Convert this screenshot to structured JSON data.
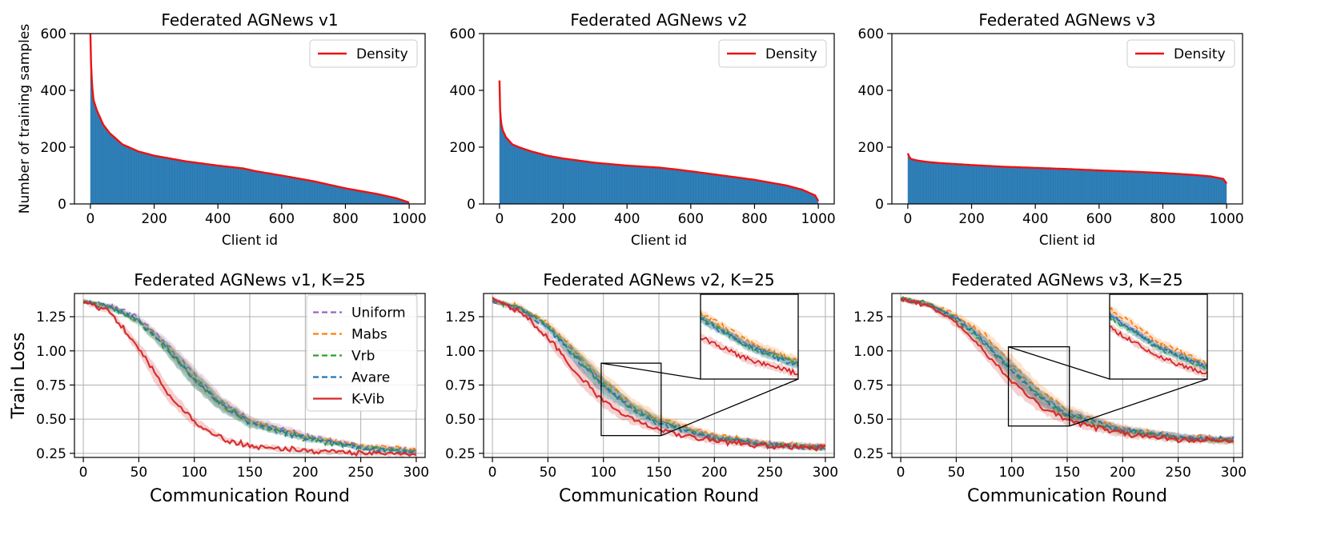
{
  "chart_data": [
    {
      "type": "bar",
      "title": "Federated AGNews v1",
      "xlabel": "Client id",
      "ylabel": "Number of training samples",
      "xlim": [
        -50,
        1050
      ],
      "ylim": [
        0,
        600
      ],
      "xticks": [
        0,
        200,
        400,
        600,
        800,
        1000
      ],
      "yticks": [
        0,
        200,
        400,
        600
      ],
      "legend": [
        "Density"
      ],
      "legend_loc": "upper right",
      "colors": {
        "bar": "#2f7fb8",
        "density": "#ee1111"
      },
      "density_x": [
        0,
        2,
        5,
        10,
        20,
        40,
        60,
        100,
        150,
        200,
        300,
        400,
        480,
        520,
        600,
        700,
        800,
        900,
        960,
        1000
      ],
      "density_y": [
        600,
        500,
        420,
        365,
        330,
        280,
        250,
        210,
        185,
        170,
        150,
        135,
        125,
        115,
        100,
        80,
        55,
        35,
        20,
        5
      ]
    },
    {
      "type": "bar",
      "title": "Federated AGNews v2",
      "xlabel": "Client id",
      "ylabel": "",
      "xlim": [
        -50,
        1050
      ],
      "ylim": [
        0,
        600
      ],
      "xticks": [
        0,
        200,
        400,
        600,
        800,
        1000
      ],
      "yticks": [
        0,
        200,
        400,
        600
      ],
      "legend": [
        "Density"
      ],
      "legend_loc": "upper right",
      "colors": {
        "bar": "#2f7fb8",
        "density": "#ee1111"
      },
      "density_x": [
        0,
        2,
        5,
        10,
        20,
        40,
        60,
        100,
        150,
        200,
        300,
        400,
        500,
        550,
        600,
        700,
        800,
        900,
        950,
        990,
        1000
      ],
      "density_y": [
        435,
        330,
        285,
        260,
        235,
        210,
        200,
        185,
        170,
        160,
        145,
        135,
        128,
        122,
        115,
        100,
        85,
        65,
        50,
        30,
        10
      ]
    },
    {
      "type": "bar",
      "title": "Federated AGNews v3",
      "xlabel": "Client id",
      "ylabel": "",
      "xlim": [
        -50,
        1050
      ],
      "ylim": [
        0,
        600
      ],
      "xticks": [
        0,
        200,
        400,
        600,
        800,
        1000
      ],
      "yticks": [
        0,
        200,
        400,
        600
      ],
      "legend": [
        "Density"
      ],
      "legend_loc": "upper right",
      "colors": {
        "bar": "#2f7fb8",
        "density": "#ee1111"
      },
      "density_x": [
        0,
        5,
        10,
        30,
        60,
        100,
        200,
        300,
        400,
        500,
        600,
        700,
        800,
        900,
        950,
        990,
        1000
      ],
      "density_y": [
        178,
        165,
        158,
        153,
        148,
        144,
        137,
        131,
        127,
        123,
        118,
        114,
        109,
        102,
        97,
        88,
        72
      ]
    },
    {
      "type": "line",
      "title": "Federated AGNews v1, K=25",
      "xlabel": "Communication Round",
      "ylabel": "Train Loss",
      "xlim": [
        -8,
        308
      ],
      "ylim": [
        0.22,
        1.42
      ],
      "xticks": [
        0,
        50,
        100,
        150,
        200,
        250,
        300
      ],
      "yticks": [
        0.25,
        0.5,
        0.75,
        1.0,
        1.25
      ],
      "ytick_labels": [
        "0.25",
        "0.50",
        "0.75",
        "1.00",
        "1.25"
      ],
      "legend_loc": "upper right",
      "x": [
        0,
        25,
        50,
        75,
        100,
        125,
        150,
        200,
        250,
        300
      ],
      "series": [
        {
          "name": "Uniform",
          "color": "#9467bd",
          "dash": "dashed",
          "values": [
            1.36,
            1.33,
            1.24,
            1.05,
            0.82,
            0.62,
            0.49,
            0.38,
            0.3,
            0.27
          ]
        },
        {
          "name": "Mabs",
          "color": "#ff7f0e",
          "dash": "dashed",
          "values": [
            1.36,
            1.32,
            1.22,
            1.03,
            0.8,
            0.61,
            0.48,
            0.37,
            0.3,
            0.28
          ]
        },
        {
          "name": "Vrb",
          "color": "#2ca02c",
          "dash": "dashed",
          "values": [
            1.36,
            1.32,
            1.21,
            1.02,
            0.79,
            0.6,
            0.47,
            0.36,
            0.29,
            0.26
          ]
        },
        {
          "name": "Avare",
          "color": "#1f77b4",
          "dash": "dashed",
          "values": [
            1.36,
            1.32,
            1.22,
            1.02,
            0.79,
            0.6,
            0.47,
            0.36,
            0.29,
            0.26
          ]
        },
        {
          "name": "K-Vib",
          "color": "#d62728",
          "dash": "solid",
          "values": [
            1.36,
            1.28,
            1.02,
            0.7,
            0.48,
            0.36,
            0.3,
            0.27,
            0.25,
            0.24
          ]
        }
      ]
    },
    {
      "type": "line",
      "title": "Federated AGNews v2, K=25",
      "xlabel": "Communication Round",
      "ylabel": "",
      "xlim": [
        -8,
        308
      ],
      "ylim": [
        0.22,
        1.42
      ],
      "xticks": [
        0,
        50,
        100,
        150,
        200,
        250,
        300
      ],
      "yticks": [
        0.25,
        0.5,
        0.75,
        1.0,
        1.25
      ],
      "ytick_labels": [
        "0.25",
        "0.50",
        "0.75",
        "1.00",
        "1.25"
      ],
      "inset_range": {
        "x": [
          98,
          152
        ],
        "y": [
          0.38,
          0.91
        ]
      },
      "x": [
        0,
        25,
        50,
        75,
        100,
        125,
        150,
        200,
        250,
        300
      ],
      "series": [
        {
          "name": "Uniform",
          "color": "#9467bd",
          "dash": "dashed",
          "values": [
            1.37,
            1.31,
            1.18,
            0.96,
            0.75,
            0.59,
            0.48,
            0.37,
            0.32,
            0.3
          ]
        },
        {
          "name": "Mabs",
          "color": "#ff7f0e",
          "dash": "dashed",
          "values": [
            1.37,
            1.32,
            1.2,
            0.99,
            0.78,
            0.61,
            0.5,
            0.38,
            0.32,
            0.3
          ]
        },
        {
          "name": "Vrb",
          "color": "#2ca02c",
          "dash": "dashed",
          "values": [
            1.37,
            1.31,
            1.18,
            0.96,
            0.75,
            0.58,
            0.48,
            0.36,
            0.31,
            0.29
          ]
        },
        {
          "name": "Avare",
          "color": "#1f77b4",
          "dash": "dashed",
          "values": [
            1.37,
            1.31,
            1.17,
            0.95,
            0.74,
            0.58,
            0.47,
            0.36,
            0.31,
            0.29
          ]
        },
        {
          "name": "K-Vib",
          "color": "#d62728",
          "dash": "solid",
          "values": [
            1.37,
            1.29,
            1.1,
            0.85,
            0.63,
            0.5,
            0.42,
            0.34,
            0.3,
            0.29
          ]
        }
      ]
    },
    {
      "type": "line",
      "title": "Federated AGNews v3, K=25",
      "xlabel": "Communication Round",
      "ylabel": "",
      "xlim": [
        -8,
        308
      ],
      "ylim": [
        0.22,
        1.42
      ],
      "xticks": [
        0,
        50,
        100,
        150,
        200,
        250,
        300
      ],
      "yticks": [
        0.25,
        0.5,
        0.75,
        1.0,
        1.25
      ],
      "ytick_labels": [
        "0.25",
        "0.50",
        "0.75",
        "1.00",
        "1.25"
      ],
      "inset_range": {
        "x": [
          97,
          152
        ],
        "y": [
          0.45,
          1.03
        ]
      },
      "x": [
        0,
        25,
        50,
        75,
        100,
        125,
        150,
        200,
        250,
        300
      ],
      "series": [
        {
          "name": "Uniform",
          "color": "#9467bd",
          "dash": "dashed",
          "values": [
            1.38,
            1.34,
            1.24,
            1.08,
            0.87,
            0.67,
            0.54,
            0.42,
            0.37,
            0.35
          ]
        },
        {
          "name": "Mabs",
          "color": "#ff7f0e",
          "dash": "dashed",
          "values": [
            1.38,
            1.35,
            1.26,
            1.12,
            0.91,
            0.7,
            0.56,
            0.43,
            0.37,
            0.35
          ]
        },
        {
          "name": "Vrb",
          "color": "#2ca02c",
          "dash": "dashed",
          "values": [
            1.38,
            1.34,
            1.23,
            1.06,
            0.85,
            0.66,
            0.53,
            0.41,
            0.36,
            0.34
          ]
        },
        {
          "name": "Avare",
          "color": "#1f77b4",
          "dash": "dashed",
          "values": [
            1.38,
            1.34,
            1.24,
            1.07,
            0.86,
            0.66,
            0.54,
            0.42,
            0.37,
            0.35
          ]
        },
        {
          "name": "K-Vib",
          "color": "#d62728",
          "dash": "solid",
          "values": [
            1.38,
            1.33,
            1.2,
            1.0,
            0.78,
            0.6,
            0.49,
            0.39,
            0.35,
            0.34
          ]
        }
      ]
    }
  ]
}
